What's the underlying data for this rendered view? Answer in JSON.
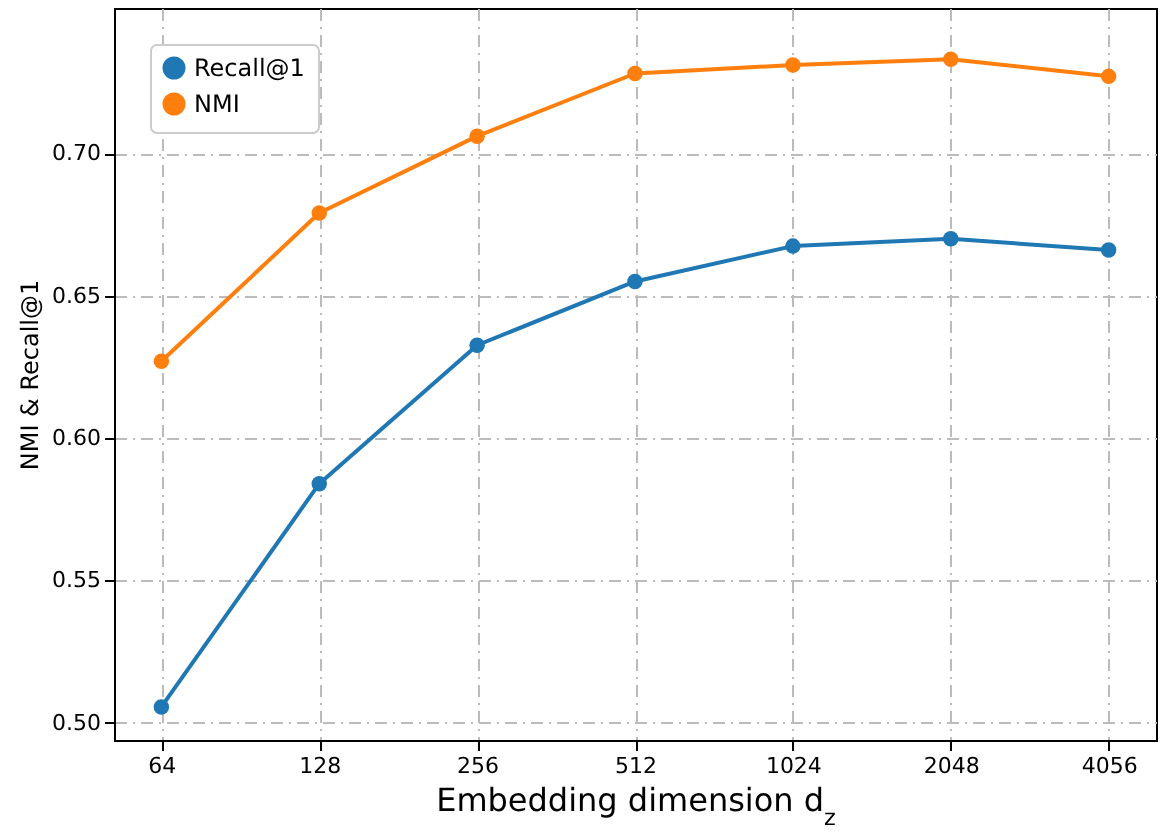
{
  "chart_data": {
    "type": "line",
    "xlabel": "Embedding dimension d$_{z}$",
    "ylabel": "NMI & Recall@1",
    "categories": [
      "64",
      "128",
      "256",
      "512",
      "1024",
      "2048",
      "4056"
    ],
    "series": [
      {
        "name": "Recall@1",
        "color": "#1f77b4",
        "values": [
          0.5056,
          0.584,
          0.6326,
          0.655,
          0.6674,
          0.67,
          0.666
        ]
      },
      {
        "name": "NMI",
        "color": "#ff7f0e",
        "values": [
          0.627,
          0.679,
          0.706,
          0.728,
          0.731,
          0.733,
          0.727
        ]
      }
    ],
    "ylim": [
      0.494,
      0.751
    ],
    "yticks": [
      {
        "value": 0.5,
        "label": "0.50"
      },
      0.55,
      {
        "value": 0.6,
        "label": "0.60"
      },
      0.65,
      {
        "value": 0.7,
        "label": "0.70"
      }
    ],
    "grid": true,
    "legend": "top left",
    "marker": "circle",
    "line_style": "solid"
  }
}
